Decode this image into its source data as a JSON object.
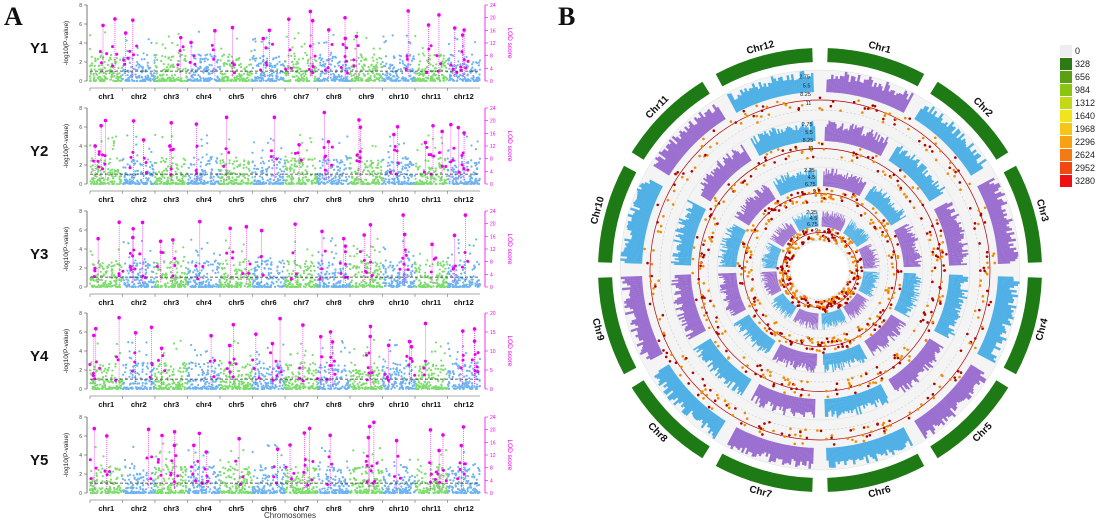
{
  "panel_a": {
    "letter": "A",
    "rows": [
      {
        "label": "Y1",
        "left_ticks": [
          "0",
          "2",
          "4",
          "6",
          "8"
        ],
        "right_ticks": [
          "0",
          "4",
          "8",
          "12",
          "16",
          "20",
          "24"
        ]
      },
      {
        "label": "Y2",
        "left_ticks": [
          "0",
          "2",
          "4",
          "6",
          "8"
        ],
        "right_ticks": [
          "0",
          "4",
          "8",
          "12",
          "16",
          "20",
          "24"
        ]
      },
      {
        "label": "Y3",
        "left_ticks": [
          "0",
          "2",
          "4",
          "6",
          "8"
        ],
        "right_ticks": [
          "0",
          "4",
          "8",
          "12",
          "16",
          "20",
          "24"
        ]
      },
      {
        "label": "Y4",
        "left_ticks": [
          "0",
          "2",
          "4",
          "6",
          "8"
        ],
        "right_ticks": [
          "0",
          "5",
          "10",
          "15",
          "20"
        ]
      },
      {
        "label": "Y5",
        "left_ticks": [
          "0",
          "2",
          "4",
          "6",
          "8"
        ],
        "right_ticks": [
          "0",
          "4",
          "8",
          "12",
          "16",
          "20",
          "24"
        ]
      }
    ],
    "chromosomes": [
      "chr1",
      "chr2",
      "chr3",
      "chr4",
      "chr5",
      "chr6",
      "chr7",
      "chr8",
      "chr9",
      "chr10",
      "chr11",
      "chr12"
    ],
    "y_label_left": "-log10(P-value)",
    "y_label_right": "LOD score",
    "x_label": "Chromosomes",
    "colors": {
      "blue": "#6fb3f0",
      "green": "#7ddc6e",
      "magenta": "#ee00ee",
      "threshold": "#333333"
    }
  },
  "panel_b": {
    "letter": "B",
    "chromosomes": [
      "Chr1",
      "Chr2",
      "Chr3",
      "Chr4",
      "Chr5",
      "Chr6",
      "Chr7",
      "Chr8",
      "Chr9",
      "Chr10",
      "Chr11",
      "Chr12"
    ],
    "ring_scale_labels": [
      "2.75",
      "5.5",
      "8.25",
      "11",
      "2.75",
      "5.5",
      "8.25",
      "11",
      "2.25",
      "4.5",
      "6.75",
      "9",
      "2.25",
      "4.5",
      "6.75",
      "9"
    ],
    "colors": {
      "blue": "#4fb0e6",
      "purple": "#9b6fd0",
      "green": "#1e7a14",
      "red": "#b00000",
      "orange": "#f08a00"
    },
    "legend": {
      "values": [
        "0",
        "328",
        "656",
        "984",
        "1312",
        "1640",
        "1968",
        "2296",
        "2624",
        "2952",
        "3280"
      ],
      "colors": [
        "#eeeeee",
        "#2d7a14",
        "#5aa011",
        "#8cc412",
        "#c3d915",
        "#f2e41a",
        "#f6c515",
        "#f7a113",
        "#f47a12",
        "#f04812",
        "#ee1111"
      ]
    }
  }
}
